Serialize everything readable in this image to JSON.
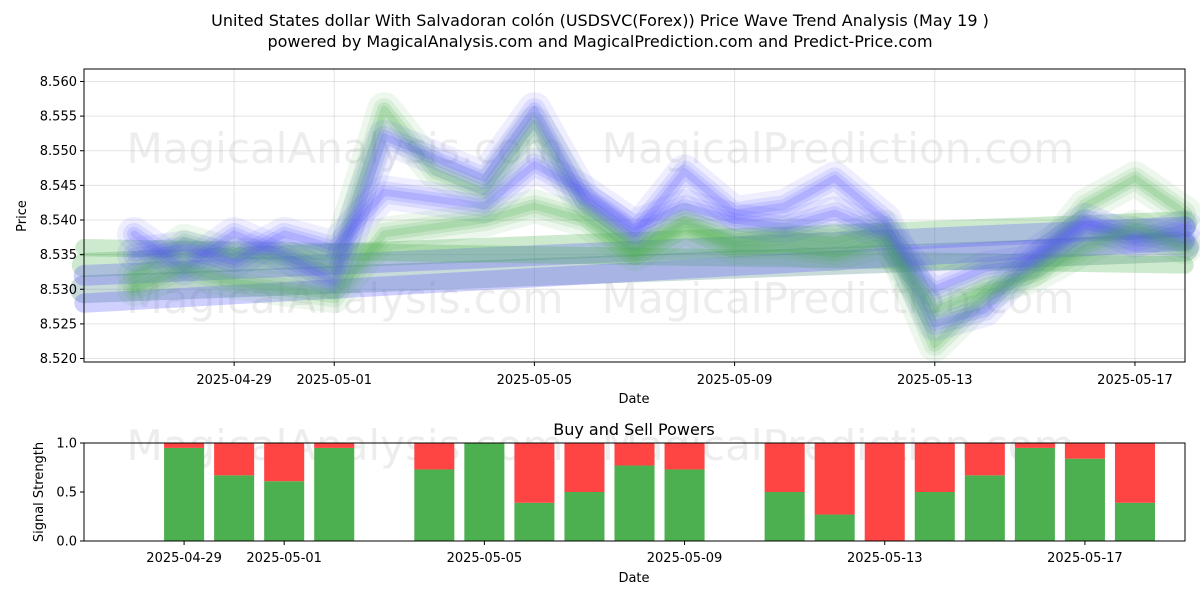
{
  "title_line1": "United States dollar With Salvadoran colón (USDSVC(Forex)) Price Wave Trend Analysis (May 19 )",
  "title_line2": "powered by MagicalAnalysis.com and MagicalPrediction.com and Predict-Price.com",
  "watermarks": [
    "MagicalAnalysis.com",
    "MagicalPrediction.com"
  ],
  "colors": {
    "green": "#4caf50",
    "red": "#ff4444",
    "blue": "#5555ff",
    "teal": "#3a7a7a"
  },
  "chart_data": [
    {
      "type": "line",
      "xlabel": "Date",
      "ylabel": "Price",
      "xlim": [
        "2025-04-26",
        "2025-05-18"
      ],
      "ylim": [
        8.5195,
        8.5618
      ],
      "x_ticks": [
        "2025-04-29",
        "2025-05-01",
        "2025-05-05",
        "2025-05-09",
        "2025-05-13",
        "2025-05-17"
      ],
      "y_ticks": [
        "8.520",
        "8.525",
        "8.530",
        "8.535",
        "8.540",
        "8.545",
        "8.550",
        "8.555",
        "8.560"
      ],
      "grid": true,
      "series": [
        {
          "color": "green",
          "values": [
            [
              "2025-04-27",
              8.532
            ],
            [
              "2025-04-28",
              8.537
            ],
            [
              "2025-04-29",
              8.535
            ],
            [
              "2025-04-30",
              8.5345
            ],
            [
              "2025-05-01",
              8.533
            ],
            [
              "2025-05-02",
              8.556
            ],
            [
              "2025-05-03",
              8.547
            ],
            [
              "2025-05-04",
              8.544
            ],
            [
              "2025-05-05",
              8.554
            ],
            [
              "2025-05-06",
              8.542
            ],
            [
              "2025-05-07",
              8.536
            ],
            [
              "2025-05-08",
              8.54
            ],
            [
              "2025-05-09",
              8.537
            ],
            [
              "2025-05-10",
              8.538
            ],
            [
              "2025-05-11",
              8.537
            ],
            [
              "2025-05-12",
              8.539
            ],
            [
              "2025-05-13",
              8.522
            ],
            [
              "2025-05-14",
              8.529
            ],
            [
              "2025-05-15",
              8.533
            ],
            [
              "2025-05-16",
              8.542
            ],
            [
              "2025-05-17",
              8.546
            ],
            [
              "2025-05-18",
              8.541
            ]
          ]
        },
        {
          "color": "blue",
          "values": [
            [
              "2025-04-27",
              8.538
            ],
            [
              "2025-04-28",
              8.533
            ],
            [
              "2025-04-29",
              8.538
            ],
            [
              "2025-04-30",
              8.535
            ],
            [
              "2025-05-01",
              8.531
            ],
            [
              "2025-05-02",
              8.552
            ],
            [
              "2025-05-03",
              8.549
            ],
            [
              "2025-05-04",
              8.546
            ],
            [
              "2025-05-05",
              8.556
            ],
            [
              "2025-05-06",
              8.543
            ],
            [
              "2025-05-07",
              8.538
            ],
            [
              "2025-05-08",
              8.547
            ],
            [
              "2025-05-09",
              8.541
            ],
            [
              "2025-05-10",
              8.542
            ],
            [
              "2025-05-11",
              8.546
            ],
            [
              "2025-05-12",
              8.54
            ],
            [
              "2025-05-13",
              8.525
            ],
            [
              "2025-05-14",
              8.527
            ],
            [
              "2025-05-15",
              8.535
            ],
            [
              "2025-05-16",
              8.54
            ],
            [
              "2025-05-17",
              8.537
            ],
            [
              "2025-05-18",
              8.539
            ]
          ]
        },
        {
          "color": "blue",
          "values": [
            [
              "2025-04-27",
              8.535
            ],
            [
              "2025-04-28",
              8.536
            ],
            [
              "2025-04-29",
              8.534
            ],
            [
              "2025-04-30",
              8.538
            ],
            [
              "2025-05-01",
              8.536
            ],
            [
              "2025-05-02",
              8.544
            ],
            [
              "2025-05-03",
              8.543
            ],
            [
              "2025-05-04",
              8.542
            ],
            [
              "2025-05-05",
              8.548
            ],
            [
              "2025-05-06",
              8.544
            ],
            [
              "2025-05-07",
              8.539
            ],
            [
              "2025-05-08",
              8.542
            ],
            [
              "2025-05-09",
              8.54
            ],
            [
              "2025-05-10",
              8.539
            ],
            [
              "2025-05-11",
              8.541
            ],
            [
              "2025-05-12",
              8.538
            ],
            [
              "2025-05-13",
              8.53
            ],
            [
              "2025-05-14",
              8.533
            ],
            [
              "2025-05-15",
              8.534
            ],
            [
              "2025-05-16",
              8.539
            ],
            [
              "2025-05-17",
              8.538
            ],
            [
              "2025-05-18",
              8.537
            ]
          ]
        },
        {
          "color": "green",
          "values": [
            [
              "2025-04-27",
              8.53
            ],
            [
              "2025-04-28",
              8.533
            ],
            [
              "2025-04-29",
              8.531
            ],
            [
              "2025-04-30",
              8.53
            ],
            [
              "2025-05-01",
              8.529
            ],
            [
              "2025-05-02",
              8.538
            ],
            [
              "2025-05-03",
              8.539
            ],
            [
              "2025-05-04",
              8.54
            ],
            [
              "2025-05-05",
              8.542
            ],
            [
              "2025-05-06",
              8.54
            ],
            [
              "2025-05-07",
              8.535
            ],
            [
              "2025-05-08",
              8.539
            ],
            [
              "2025-05-09",
              8.536
            ],
            [
              "2025-05-10",
              8.536
            ],
            [
              "2025-05-11",
              8.535
            ],
            [
              "2025-05-12",
              8.537
            ],
            [
              "2025-05-13",
              8.527
            ],
            [
              "2025-05-14",
              8.53
            ],
            [
              "2025-05-15",
              8.532
            ],
            [
              "2025-05-16",
              8.536
            ],
            [
              "2025-05-17",
              8.539
            ],
            [
              "2025-05-18",
              8.536
            ]
          ]
        }
      ],
      "trend_bands": [
        {
          "color": "green",
          "start": [
            "2025-04-26",
            8.5335
          ],
          "end": [
            "2025-05-18",
            8.5395
          ],
          "width": 0.0035
        },
        {
          "color": "teal",
          "start": [
            "2025-04-26",
            8.53
          ],
          "end": [
            "2025-05-18",
            8.536
          ],
          "width": 0.004
        },
        {
          "color": "blue",
          "start": [
            "2025-04-26",
            8.532
          ],
          "end": [
            "2025-05-18",
            8.539
          ],
          "width": 0.003
        },
        {
          "color": "green",
          "start": [
            "2025-04-26",
            8.536
          ],
          "end": [
            "2025-05-18",
            8.5335
          ],
          "width": 0.0025
        },
        {
          "color": "blue",
          "start": [
            "2025-04-26",
            8.528
          ],
          "end": [
            "2025-05-18",
            8.537
          ],
          "width": 0.0028
        }
      ]
    },
    {
      "type": "bar",
      "title": "Buy and Sell Powers",
      "xlabel": "Date",
      "ylabel": "Signal Strength",
      "xlim": [
        "2025-04-27",
        "2025-05-19"
      ],
      "ylim": [
        0,
        1
      ],
      "x_ticks": [
        "2025-04-29",
        "2025-05-01",
        "2025-05-05",
        "2025-05-09",
        "2025-05-13",
        "2025-05-17"
      ],
      "y_ticks": [
        "0.0",
        "0.5",
        "1.0"
      ],
      "series": [
        {
          "name": "buy",
          "color": "green"
        },
        {
          "name": "sell",
          "color": "red"
        }
      ],
      "bars": [
        {
          "date": "2025-04-29",
          "buy": 0.95
        },
        {
          "date": "2025-04-30",
          "buy": 0.67
        },
        {
          "date": "2025-05-01",
          "buy": 0.61
        },
        {
          "date": "2025-05-02",
          "buy": 0.95
        },
        {
          "date": "2025-05-04",
          "buy": 0.73
        },
        {
          "date": "2025-05-05",
          "buy": 1.0
        },
        {
          "date": "2025-05-06",
          "buy": 0.39
        },
        {
          "date": "2025-05-07",
          "buy": 0.5
        },
        {
          "date": "2025-05-08",
          "buy": 0.77
        },
        {
          "date": "2025-05-09",
          "buy": 0.73
        },
        {
          "date": "2025-05-11",
          "buy": 0.5
        },
        {
          "date": "2025-05-12",
          "buy": 0.27
        },
        {
          "date": "2025-05-13",
          "buy": 0.0
        },
        {
          "date": "2025-05-14",
          "buy": 0.5
        },
        {
          "date": "2025-05-15",
          "buy": 0.67
        },
        {
          "date": "2025-05-16",
          "buy": 0.95
        },
        {
          "date": "2025-05-17",
          "buy": 0.84
        },
        {
          "date": "2025-05-18",
          "buy": 0.39
        }
      ]
    }
  ]
}
